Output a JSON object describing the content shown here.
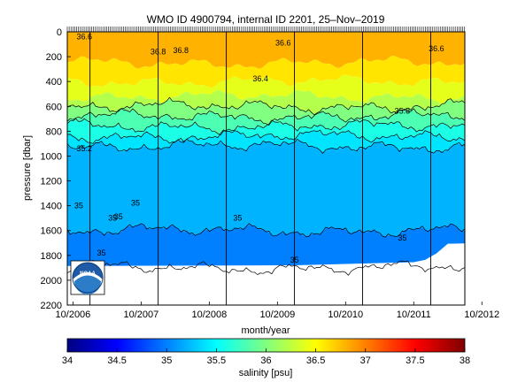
{
  "chart_data": {
    "type": "heatmap",
    "title": "WMO ID 4900794, internal ID 2201, 25–Nov–2019",
    "xlabel": "month/year",
    "ylabel": "pressure [dbar]",
    "colorbar_label": "salinity [psu]",
    "x_range": [
      "2006-09",
      "2012-07"
    ],
    "x_ticks": [
      "10/2006",
      "10/2007",
      "10/2008",
      "10/2009",
      "10/2010",
      "10/2011",
      "10/2012"
    ],
    "y_range": [
      0,
      2200
    ],
    "y_reversed": true,
    "y_ticks": [
      0,
      200,
      400,
      600,
      800,
      1000,
      1200,
      1400,
      1600,
      1800,
      2000,
      2200
    ],
    "color_range": [
      34,
      38
    ],
    "colorbar_ticks": [
      34,
      34.5,
      35,
      35.5,
      36,
      36.5,
      37,
      37.5,
      38
    ],
    "colormap": "jet",
    "legend_logo": "NOAA",
    "contour_labels": [
      {
        "text": "36.6",
        "x": "2006-12",
        "y": 60
      },
      {
        "text": "36.8",
        "x": "2008-01",
        "y": 180
      },
      {
        "text": "36.8",
        "x": "2008-05",
        "y": 170
      },
      {
        "text": "36.6",
        "x": "2009-11",
        "y": 110
      },
      {
        "text": "36.6",
        "x": "2012-02",
        "y": 155
      },
      {
        "text": "36.4",
        "x": "2009-07",
        "y": 400
      },
      {
        "text": "35.8",
        "x": "2011-08",
        "y": 660
      },
      {
        "text": "35.2",
        "x": "2006-12",
        "y": 960
      },
      {
        "text": "35",
        "x": "2006-11",
        "y": 1420
      },
      {
        "text": "35",
        "x": "2007-05",
        "y": 1520
      },
      {
        "text": "35",
        "x": "2007-06",
        "y": 1510
      },
      {
        "text": "35",
        "x": "2007-09",
        "y": 1400
      },
      {
        "text": "35",
        "x": "2009-03",
        "y": 1520
      },
      {
        "text": "35",
        "x": "2007-03",
        "y": 1800
      },
      {
        "text": "35",
        "x": "2010-01",
        "y": 1860
      },
      {
        "text": "35",
        "x": "2011-08",
        "y": 1680
      }
    ],
    "salinity_layers": [
      {
        "depth_dbar": 0,
        "salinity_psu": 36.8
      },
      {
        "depth_dbar": 250,
        "salinity_psu": 36.6
      },
      {
        "depth_dbar": 400,
        "salinity_psu": 36.4
      },
      {
        "depth_dbar": 520,
        "salinity_psu": 36.2
      },
      {
        "depth_dbar": 600,
        "salinity_psu": 36.0
      },
      {
        "depth_dbar": 680,
        "salinity_psu": 35.8
      },
      {
        "depth_dbar": 760,
        "salinity_psu": 35.6
      },
      {
        "depth_dbar": 840,
        "salinity_psu": 35.4
      },
      {
        "depth_dbar": 920,
        "salinity_psu": 35.2
      },
      {
        "depth_dbar": 1600,
        "salinity_psu": 35.0
      },
      {
        "depth_dbar": 1900,
        "salinity_psu": 34.95
      }
    ],
    "max_depth_profile": [
      {
        "x": "2006-09",
        "y": 1880
      },
      {
        "x": "2010-01",
        "y": 1880
      },
      {
        "x": "2011-10",
        "y": 1860
      },
      {
        "x": "2011-12",
        "y": 1830
      },
      {
        "x": "2012-02",
        "y": 1790
      },
      {
        "x": "2012-04",
        "y": 1700
      },
      {
        "x": "2012-07",
        "y": 1700
      }
    ],
    "year_markers": [
      "2007-01",
      "2008-01",
      "2009-01",
      "2010-01",
      "2011-01",
      "2012-01"
    ]
  }
}
